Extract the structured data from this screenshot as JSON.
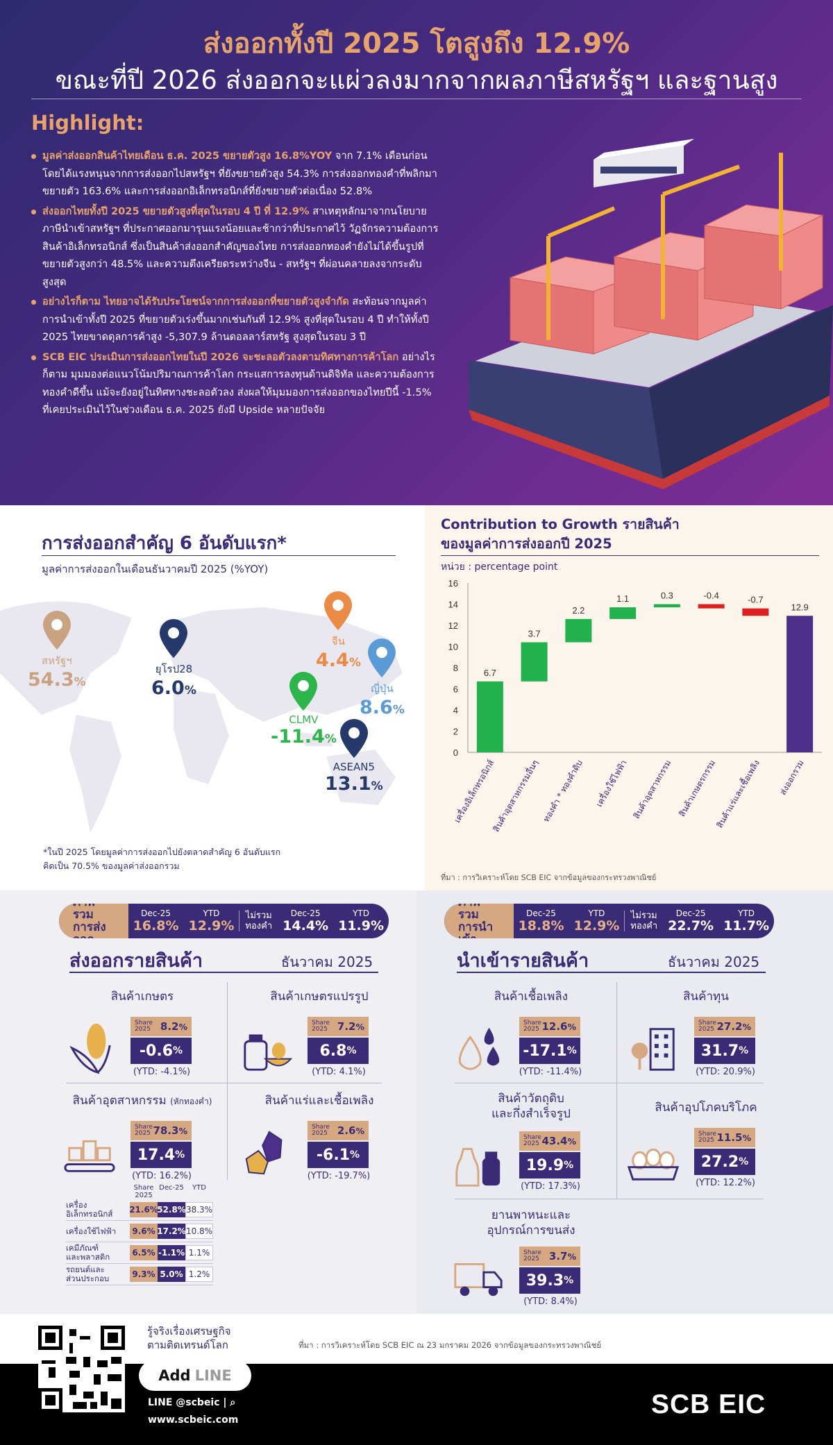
{
  "header": {
    "title_line1": "ส่งออกทั้งปี 2025 โตสูงถึง 12.9%",
    "title_line2": "ขณะที่ปี 2026 ส่งออกจะแผ่วลงมากจากผลภาษีสหรัฐฯ และฐานสูง",
    "highlight_title": "Highlight:"
  },
  "highlights": [
    {
      "lead": "มูลค่าส่งออกสินค้าไทยเดือน ธ.ค. 2025 ขยายตัวสูง 16.8%YOY",
      "text": " จาก 7.1% เดือนก่อน โดยได้แรงหนุนจากการส่งออกไปสหรัฐฯ ที่ยังขยายตัวสูง 54.3% การส่งออกทองคำที่พลิกมาขยายตัว 163.6% และการส่งออกอิเล็กทรอนิกส์ที่ยังขยายตัวต่อเนื่อง 52.8%"
    },
    {
      "lead": "ส่งออกไทยทั้งปี 2025 ขยายตัวสูงที่สุดในรอบ 4 ปี ที่ 12.9%",
      "text": " สาเหตุหลักมาจากนโยบายภาษีนำเข้าสหรัฐฯ ที่ประกาศออกมารุนแรงน้อยและช้ากว่าที่ประกาศไว้ วัฏจักรความต้องการสินค้าอิเล็กทรอนิกส์ ซึ่งเป็นสินค้าส่งออกสำคัญของไทย การส่งออกทองคำยังไม่ได้ขึ้นรูปที่ขยายตัวสูงกว่า 48.5% และความตึงเครียดระหว่างจีน - สหรัฐฯ ที่ผ่อนคลายลงจากระดับสูงสุด"
    },
    {
      "lead": "อย่างไรก็ตาม ไทยอาจได้รับประโยชน์จากการส่งออกที่ขยายตัวสูงจำกัด",
      "text": " สะท้อนจากมูลค่าการนำเข้าทั้งปี 2025 ที่ขยายตัวเร่งขึ้นมากเช่นกันที่ 12.9% สูงที่สุดในรอบ 4 ปี ทำให้ทั้งปี 2025 ไทยขาดดุลการค้าสูง -5,307.9 ล้านดอลลาร์สหรัฐ สูงสุดในรอบ 3 ปี"
    },
    {
      "lead": "SCB EIC ประเมินการส่งออกไทยในปี 2026 จะชะลอตัวลงตามทิศทางการค้าโลก",
      "text": " อย่างไรก็ตาม มุมมองต่อแนวโน้มปริมาณการค้าโลก กระแสการลงทุนด้านดิจิทัล และความต้องการทองคำดีขึ้น แม้จะยังอยู่ในทิศทางชะลอตัวลง ส่งผลให้มุมมองการส่งออกของไทยปีนี้ -1.5% ที่เคยประเมินไว้ในช่วงเดือน ธ.ค. 2025 ยังมี Upside หลายปัจจัย"
    }
  ],
  "top6": {
    "title": "การส่งออกสำคัญ 6 อันดับแรก*",
    "subtitle": "มูลค่าการส่งออกในเดือนธันวาคมปี 2025 (%YOY)",
    "markets": [
      {
        "name": "สหรัฐฯ",
        "value": "54.3",
        "unit": "%",
        "color": "#c9a282"
      },
      {
        "name": "ยุโรป28",
        "value": "6.0",
        "unit": "%",
        "color": "#253a6b"
      },
      {
        "name": "จีน",
        "value": "4.4",
        "unit": "%",
        "color": "#ea8a45"
      },
      {
        "name": "ญี่ปุ่น",
        "value": "8.6",
        "unit": "%",
        "color": "#5b9bd5"
      },
      {
        "name": "CLMV",
        "value": "-11.4",
        "unit": "%",
        "color": "#2db44a"
      },
      {
        "name": "ASEAN5",
        "value": "13.1",
        "unit": "%",
        "color": "#253a6b"
      }
    ],
    "note_line1": "*ในปี 2025 โดยมูลค่าการส่งออกไปยังตลาดสำคัญ 6 อันดับแรก",
    "note_line2": "คิดเป็น 70.5% ของมูลค่าส่งออกรวม"
  },
  "contribution": {
    "title_line1": "Contribution to Growth รายสินค้า",
    "title_line2": "ของมูลค่าการส่งออกปี 2025",
    "unit": "หน่วย : percentage point",
    "source": "ที่มา : การวิเคราะห์โดย SCB EIC จากข้อมูลของกระทรวงพาณิชย์"
  },
  "chart_data": {
    "type": "bar",
    "subtype": "waterfall",
    "title": "Contribution to Growth รายสินค้า ของมูลค่าการส่งออกปี 2025",
    "ylabel": "หน่วย : percentage point",
    "ylim": [
      0,
      16
    ],
    "yticks": [
      0,
      2,
      4,
      6,
      8,
      10,
      12,
      14,
      16
    ],
    "categories": [
      "เครื่องอิเล็กทรอนิกส์",
      "สินค้าอุตสาหกรรมอื่นๆ",
      "ทองคำ * ทองคำดิบ",
      "เครื่องใช้ไฟฟ้า",
      "สินค้าอุตสาหกรรม",
      "สินค้าเกษตรกรรม",
      "สินค้าแร่และเชื้อเพลิง",
      "ส่งออกรวม"
    ],
    "values": [
      6.7,
      3.7,
      2.2,
      1.1,
      0.3,
      -0.4,
      -0.7,
      12.9
    ],
    "total_index": 7,
    "colors": {
      "positive": "#22b14c",
      "negative": "#e02020",
      "total": "#4b2f8a"
    }
  },
  "export_summary": {
    "lead_line1": "ภาพรวม",
    "lead_line2": "การส่งออก",
    "dec_label": "Dec-25",
    "ytd_label": "YTD",
    "dec": "16.8%",
    "ytd": "12.9%",
    "nogold_line1": "ไม่รวม",
    "nogold_line2": "ทองคำ",
    "dec_ng": "14.4%",
    "ytd_ng": "11.9%"
  },
  "import_summary": {
    "lead_line1": "ภาพรวม",
    "lead_line2": "การนำเข้า",
    "dec_label": "Dec-25",
    "ytd_label": "YTD",
    "dec": "18.8%",
    "ytd": "12.9%",
    "nogold_line1": "ไม่รวม",
    "nogold_line2": "ทองคำ",
    "dec_ng": "22.7%",
    "ytd_ng": "11.7%"
  },
  "exports_by_product": {
    "title": "ส่งออกรายสินค้า",
    "date": "ธันวาคม 2025",
    "share_label_1": "Share",
    "share_label_2": "2025",
    "items": [
      {
        "name": "สินค้าเกษตร",
        "note": "",
        "share": "8.2",
        "value": "-0.6",
        "ytd": "(YTD: -4.1%)"
      },
      {
        "name": "สินค้าเกษตรแปรรูป",
        "note": "",
        "share": "7.2",
        "value": "6.8",
        "ytd": "(YTD: 4.1%)"
      },
      {
        "name": "สินค้าอุตสาหกรรม",
        "note": "(หักทองคำ)",
        "share": "78.3",
        "value": "17.4",
        "ytd": "(YTD: 16.2%)"
      },
      {
        "name": "สินค้าแร่และเชื้อเพลิง",
        "note": "",
        "share": "2.6",
        "value": "-6.1",
        "ytd": "(YTD: -19.7%)"
      }
    ],
    "subtable": {
      "headers": [
        "Share 2025",
        "Dec-25",
        "YTD"
      ],
      "rows": [
        {
          "line1": "เครื่อง",
          "line2": "อิเล็กทรอนิกส์",
          "share": "21.6%",
          "dec": "52.8%",
          "ytd": "38.3%"
        },
        {
          "line1": "เครื่องใช้ไฟฟ้า",
          "line2": "",
          "share": "9.6%",
          "dec": "17.2%",
          "ytd": "10.8%"
        },
        {
          "line1": "เคมีภัณฑ์",
          "line2": "และพลาสติก",
          "share": "6.5%",
          "dec": "-1.1%",
          "ytd": "1.1%"
        },
        {
          "line1": "รถยนต์และ",
          "line2": "ส่วนประกอบ",
          "share": "9.3%",
          "dec": "5.0%",
          "ytd": "1.2%"
        }
      ]
    }
  },
  "imports_by_product": {
    "title": "นำเข้ารายสินค้า",
    "date": "ธันวาคม 2025",
    "items": [
      {
        "name": "สินค้าเชื้อเพลิง",
        "name2": "",
        "share": "12.6",
        "value": "-17.1",
        "ytd": "(YTD: -11.4%)"
      },
      {
        "name": "สินค้าทุน",
        "name2": "",
        "share": "27.2",
        "value": "31.7",
        "ytd": "(YTD: 20.9%)"
      },
      {
        "name": "สินค้าวัตถุดิบ",
        "name2": "และกึ่งสำเร็จรูป",
        "share": "43.4",
        "value": "19.9",
        "ytd": "(YTD: 17.3%)"
      },
      {
        "name": "สินค้าอุปโภคบริโภค",
        "name2": "",
        "share": "11.5",
        "value": "27.2",
        "ytd": "(YTD: 12.2%)"
      },
      {
        "name": "ยานพาหนะและ",
        "name2": "อุปกรณ์การขนส่ง",
        "share": "3.7",
        "value": "39.3",
        "ytd": "(YTD: 8.4%)"
      }
    ]
  },
  "footer": {
    "follow_line1": "รู้จริงเรื่องเศรษฐกิจ",
    "follow_line2": "ตามติดเทรนด์โลก",
    "add_line": "Add",
    "add_line2": "LINE",
    "line_id": "LINE @scbeic | ⌕",
    "website": "www.scbeic.com",
    "source": "ที่มา : การวิเคราะห์โดย SCB EIC ณ 23 มกราคม 2026 จากข้อมูลของกระทรวงพาณิชย์",
    "logo": "SCB EIC"
  }
}
